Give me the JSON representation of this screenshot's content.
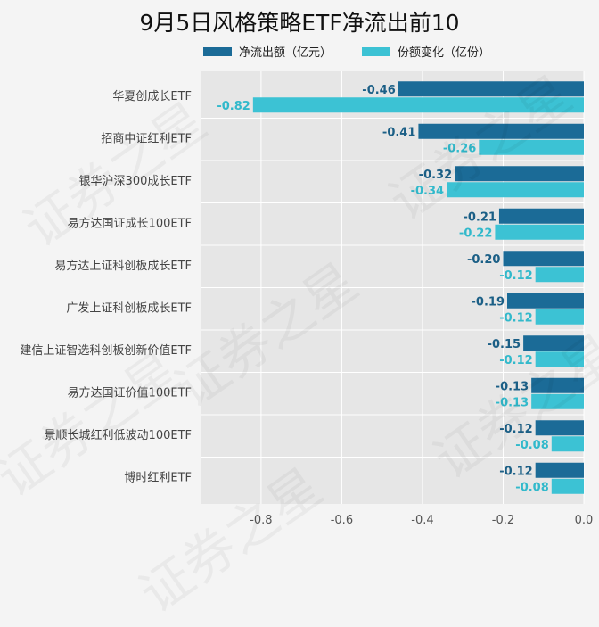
{
  "chart_data": {
    "type": "bar",
    "orientation": "horizontal",
    "title": "9月5日风格策略ETF净流出前10",
    "categories": [
      "华夏创成长ETF",
      "招商中证红利ETF",
      "银华沪深300成长ETF",
      "易方达国证成长100ETF",
      "易方达上证科创板成长ETF",
      "广发上证科创板成长ETF",
      "建信上证智选科创板创新价值ETF",
      "易方达国证价值100ETF",
      "景顺长城红利低波动100ETF",
      "博时红利ETF"
    ],
    "series": [
      {
        "name": "净流出额（亿元）",
        "color": "#1b6b97",
        "values": [
          -0.46,
          -0.41,
          -0.32,
          -0.21,
          -0.2,
          -0.19,
          -0.15,
          -0.13,
          -0.12,
          -0.12
        ]
      },
      {
        "name": "份额变化（亿份）",
        "color": "#3cc2d4",
        "values": [
          -0.82,
          -0.26,
          -0.34,
          -0.22,
          -0.12,
          -0.12,
          -0.12,
          -0.13,
          -0.08,
          -0.08
        ]
      }
    ],
    "value_labels": [
      [
        "-0.46",
        "-0.41",
        "-0.32",
        "-0.21",
        "-0.20",
        "-0.19",
        "-0.15",
        "-0.13",
        "-0.12",
        "-0.12"
      ],
      [
        "-0.82",
        "-0.26",
        "-0.34",
        "-0.22",
        "-0.12",
        "-0.12",
        "-0.12",
        "-0.13",
        "-0.08",
        "-0.08"
      ]
    ],
    "xlim": [
      -0.95,
      0
    ],
    "xticks": [
      "-0.8",
      "-0.6",
      "-0.4",
      "-0.2",
      "0.0"
    ],
    "xtick_values": [
      -0.8,
      -0.6,
      -0.4,
      -0.2,
      0.0
    ],
    "grid": true,
    "legend_position": "top"
  },
  "watermark_text": "证券之星"
}
